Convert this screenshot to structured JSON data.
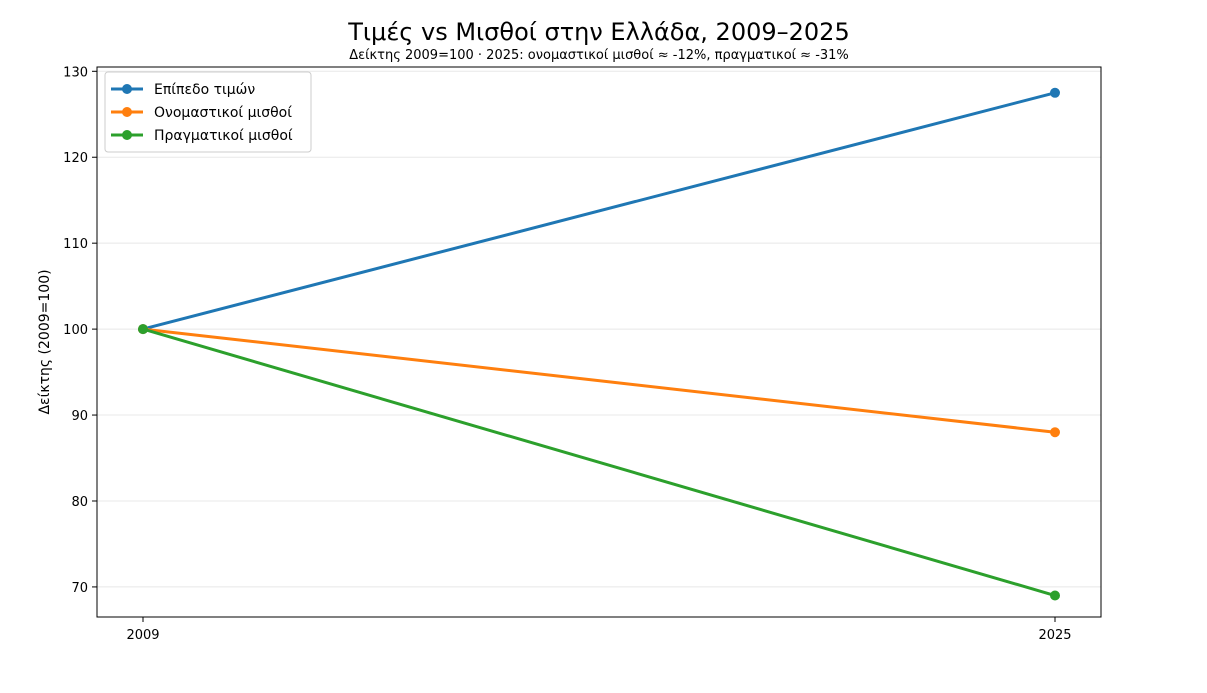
{
  "chart_data": {
    "type": "line",
    "title": "Τιμές vs Μισθοί στην Ελλάδα, 2009–2025",
    "subtitle": "Δείκτης 2009=100 · 2025: ονομαστικοί μισθοί ≈ -12%, πραγματικοί ≈ -31%",
    "xlabel": "",
    "ylabel": "Δείκτης (2009=100)",
    "x": [
      "2009",
      "2025"
    ],
    "ylim": [
      66.5,
      130.5
    ],
    "yticks": [
      70,
      80,
      90,
      100,
      110,
      120,
      130
    ],
    "grid": "horizontal",
    "legend_position": "top-left",
    "series": [
      {
        "name": "Επίπεδο τιμών",
        "values": [
          100,
          127.5
        ],
        "color": "#1f77b4"
      },
      {
        "name": "Ονομαστικοί μισθοί",
        "values": [
          100,
          88
        ],
        "color": "#ff7f0e"
      },
      {
        "name": "Πραγματικοί μισθοί",
        "values": [
          100,
          69
        ],
        "color": "#2ca02c"
      }
    ]
  }
}
